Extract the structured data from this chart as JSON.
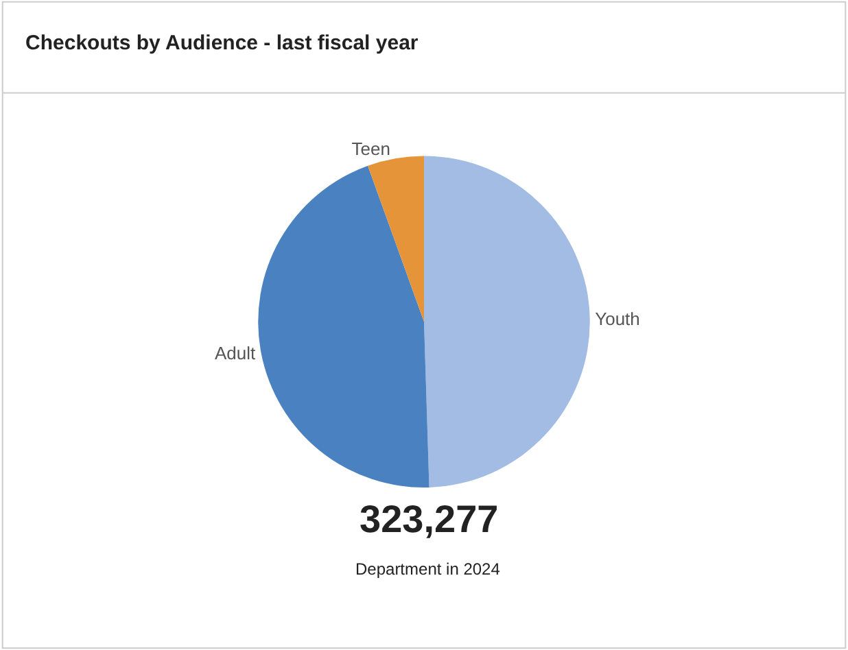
{
  "chart_data": {
    "type": "pie",
    "title": "Checkouts by Audience - last fiscal year",
    "categories": [
      "Youth",
      "Adult",
      "Teen"
    ],
    "values": [
      49.5,
      45,
      5.5
    ],
    "colors": [
      "#a3bce4",
      "#4a81c0",
      "#e69439"
    ],
    "annotations": [
      "323,277",
      "Department in 2024"
    ],
    "legend": false
  }
}
